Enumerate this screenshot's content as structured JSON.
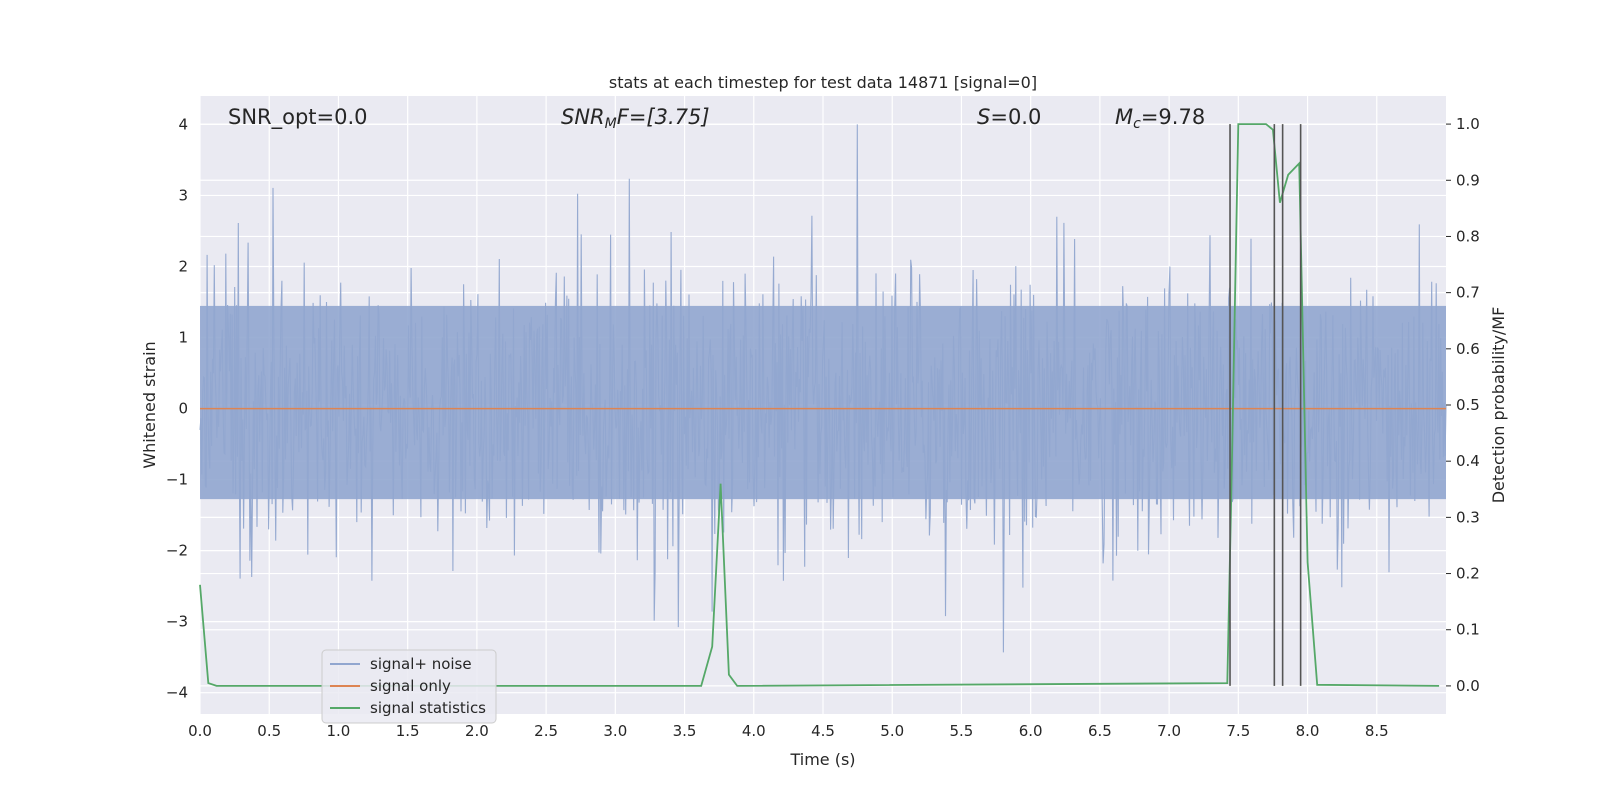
{
  "chart_data": {
    "type": "line",
    "title": "stats at each timestep for test data 14871 [signal=0]",
    "xlabel": "Time (s)",
    "ylabel_left": "Whitened strain",
    "ylabel_right": "Detection probability/MF",
    "xlim": [
      0.0,
      9.0
    ],
    "ylim_left": [
      -4.3,
      4.4
    ],
    "ylim_right": [
      -0.05,
      1.05
    ],
    "grid": true,
    "x_ticks": [
      "0.0",
      "0.5",
      "1.0",
      "1.5",
      "2.0",
      "2.5",
      "3.0",
      "3.5",
      "4.0",
      "4.5",
      "5.0",
      "5.5",
      "6.0",
      "6.5",
      "7.0",
      "7.5",
      "8.0",
      "8.5"
    ],
    "y_left_ticks": [
      "−4",
      "−3",
      "−2",
      "−1",
      "0",
      "1",
      "2",
      "3",
      "4"
    ],
    "y_right_ticks": [
      "0.0",
      "0.1",
      "0.2",
      "0.3",
      "0.4",
      "0.5",
      "0.6",
      "0.7",
      "0.8",
      "0.9",
      "1.0"
    ],
    "annotations": {
      "snr_opt": "SNR_opt=0.0",
      "snr_mf_base": "SNR",
      "snr_mf_sub": "M",
      "snr_mf_rest": "F=[3.75]",
      "s_italic": "S",
      "s_rest": "=0.0",
      "mc_italic": "M",
      "mc_sub": "c",
      "mc_rest": "=9.78"
    },
    "legend": {
      "placement": "lower-left",
      "entries": [
        "signal+ noise",
        "signal only",
        "signal statistics"
      ]
    },
    "series": [
      {
        "name": "signal+ noise",
        "color": "#91a6cf",
        "axis": "left",
        "kind": "noise",
        "x_range": [
          0.0,
          9.0
        ],
        "typical_range": [
          -1.5,
          1.7
        ],
        "extreme_range": [
          -3.6,
          4.0
        ]
      },
      {
        "name": "signal only",
        "color": "#dd8452",
        "axis": "left",
        "x": [
          0.0,
          9.0
        ],
        "y": [
          0.0,
          0.0
        ]
      },
      {
        "name": "signal statistics",
        "color": "#55a868",
        "axis": "right",
        "x": [
          0.0,
          0.06,
          0.12,
          3.62,
          3.7,
          3.76,
          3.82,
          3.88,
          7.42,
          7.45,
          7.5,
          7.6,
          7.7,
          7.75,
          7.8,
          7.86,
          7.94,
          8.0,
          8.07,
          8.95
        ],
        "y": [
          0.18,
          0.005,
          0.0,
          0.0,
          0.07,
          0.36,
          0.02,
          0.0,
          0.005,
          0.35,
          1.0,
          1.0,
          1.0,
          0.99,
          0.86,
          0.91,
          0.93,
          0.22,
          0.002,
          0.0
        ]
      }
    ],
    "vertical_lines": {
      "color": "#555555",
      "x": [
        7.44,
        7.76,
        7.82,
        7.95
      ],
      "y_range_right": [
        0.0,
        1.0
      ]
    }
  }
}
